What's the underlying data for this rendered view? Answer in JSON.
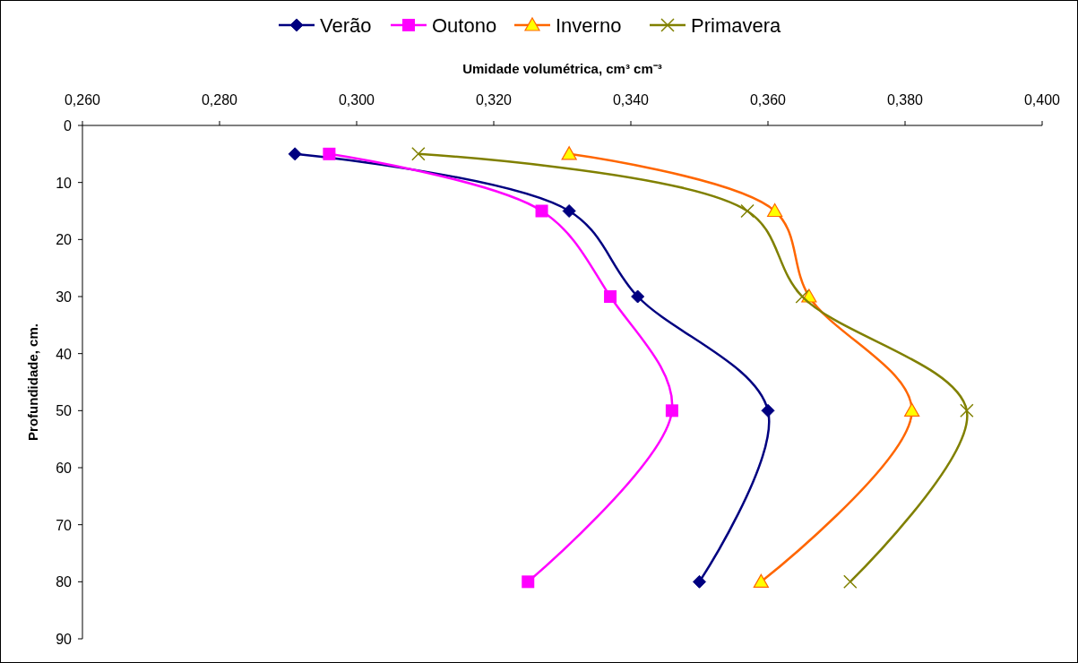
{
  "chart_data": {
    "type": "line",
    "xlabel": "Umidade volumétrica, cm³ cm⁻³",
    "ylabel": "Profundidade, cm.",
    "xlim": [
      0.26,
      0.4
    ],
    "xticks": [
      {
        "value": 0.26,
        "label": "0,260"
      },
      {
        "value": 0.28,
        "label": "0,280"
      },
      {
        "value": 0.3,
        "label": "0,300"
      },
      {
        "value": 0.32,
        "label": "0,320"
      },
      {
        "value": 0.34,
        "label": "0,340"
      },
      {
        "value": 0.36,
        "label": "0,360"
      },
      {
        "value": 0.38,
        "label": "0,380"
      },
      {
        "value": 0.4,
        "label": "0,400"
      }
    ],
    "ylim": [
      90,
      0
    ],
    "yticks": [
      0,
      10,
      20,
      30,
      40,
      50,
      60,
      70,
      80,
      90
    ],
    "grid": false,
    "legend": "top",
    "line_style": "solid",
    "series": [
      {
        "name": "Verão",
        "color": "#000080",
        "marker": "diamond",
        "x": [
          0.291,
          0.331,
          0.341,
          0.36,
          0.35
        ],
        "values": [
          5,
          15,
          30,
          50,
          80
        ]
      },
      {
        "name": "Outono",
        "color": "#ff00ff",
        "marker": "square",
        "x": [
          0.296,
          0.327,
          0.337,
          0.346,
          0.325
        ],
        "values": [
          5,
          15,
          30,
          50,
          80
        ]
      },
      {
        "name": "Inverno",
        "color": "#ff6600",
        "marker": "triangle",
        "x": [
          0.331,
          0.361,
          0.366,
          0.381,
          0.359
        ],
        "values": [
          5,
          15,
          30,
          50,
          80
        ]
      },
      {
        "name": "Primavera",
        "color": "#808000",
        "marker": "cross",
        "x": [
          0.309,
          0.357,
          0.365,
          0.389,
          0.372
        ],
        "values": [
          5,
          15,
          30,
          50,
          80
        ]
      }
    ]
  }
}
